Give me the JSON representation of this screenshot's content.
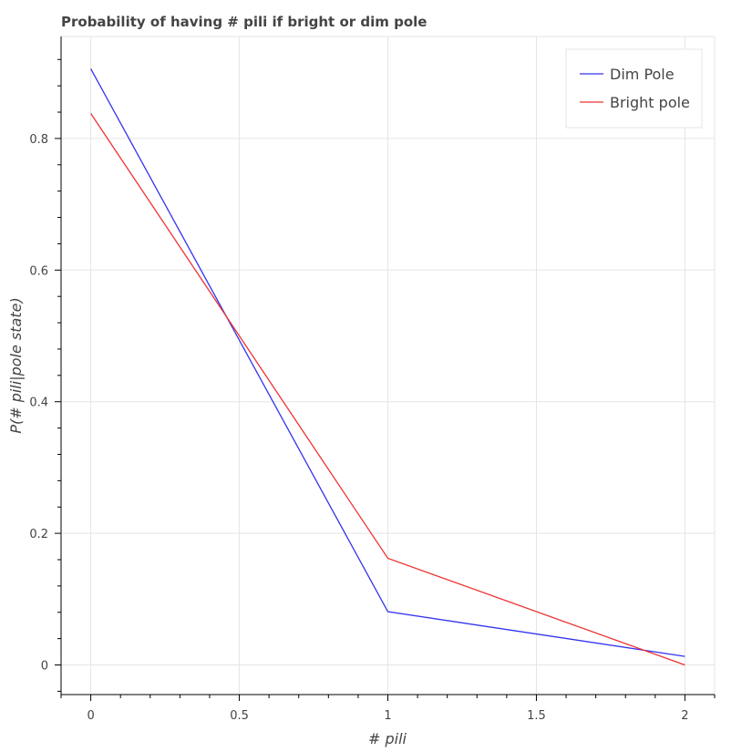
{
  "chart_data": {
    "type": "line",
    "title": "Probability of having # pili if bright or dim pole",
    "xlabel": "# pili",
    "ylabel": "P(# pili|pole state)",
    "x": [
      0,
      1,
      2
    ],
    "xlim": [
      -0.1,
      2.1
    ],
    "ylim": [
      -0.045,
      0.955
    ],
    "xticks": [
      0,
      0.5,
      1,
      1.5,
      2
    ],
    "xtick_labels": [
      "0",
      "0.5",
      "1",
      "1.5",
      "2"
    ],
    "yticks": [
      0,
      0.2,
      0.4,
      0.6,
      0.8
    ],
    "ytick_labels": [
      "0",
      "0.2",
      "0.4",
      "0.6",
      "0.8"
    ],
    "grid": true,
    "legend_position": "top-right",
    "series": [
      {
        "name": "Dim Pole",
        "color": "#3333ee",
        "values": [
          0.906,
          0.081,
          0.013
        ]
      },
      {
        "name": "Bright pole",
        "color": "#ee3333",
        "values": [
          0.838,
          0.162,
          0.0
        ]
      }
    ]
  }
}
